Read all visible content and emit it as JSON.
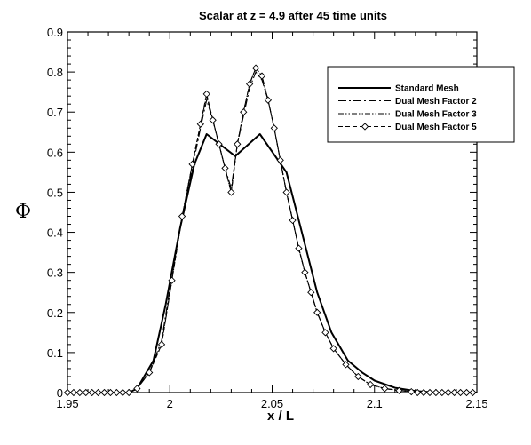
{
  "chart_data": {
    "type": "line",
    "title": "Scalar at z = 4.9 after 45 time units",
    "xlabel": "x / L",
    "ylabel": "Φ",
    "xlim": [
      1.95,
      2.15
    ],
    "ylim": [
      0,
      0.9
    ],
    "x_ticks": [
      "1.95",
      "2",
      "2.05",
      "2.1",
      "2.15"
    ],
    "y_ticks": [
      "0",
      "0.1",
      "0.2",
      "0.3",
      "0.4",
      "0.5",
      "0.6",
      "0.7",
      "0.8",
      "0.9"
    ],
    "grid": false,
    "legend_position": "top-right",
    "series": [
      {
        "name": "Standard Mesh",
        "style": "solid",
        "marker": "none",
        "x": [
          1.95,
          1.98,
          1.984,
          1.992,
          1.998,
          2.005,
          2.012,
          2.018,
          2.032,
          2.044,
          2.057,
          2.061,
          2.066,
          2.072,
          2.079,
          2.087,
          2.094,
          2.1,
          2.11,
          2.12,
          2.13,
          2.15
        ],
        "y": [
          0.0,
          0.0,
          0.01,
          0.08,
          0.22,
          0.41,
          0.57,
          0.645,
          0.59,
          0.645,
          0.55,
          0.47,
          0.37,
          0.25,
          0.15,
          0.08,
          0.05,
          0.03,
          0.012,
          0.004,
          0.0,
          0.0
        ]
      },
      {
        "name": "Dual Mesh Factor 2",
        "style": "dashdot",
        "marker": "none",
        "x": [
          1.95,
          1.98,
          1.984,
          1.99,
          1.996,
          2.001,
          2.006,
          2.011,
          2.015,
          2.018,
          2.021,
          2.024,
          2.027,
          2.03,
          2.033,
          2.036,
          2.039,
          2.042,
          2.045,
          2.048,
          2.051,
          2.054,
          2.057,
          2.06,
          2.063,
          2.066,
          2.069,
          2.072,
          2.076,
          2.08,
          2.086,
          2.092,
          2.098,
          2.105,
          2.115,
          2.125,
          2.15
        ],
        "y": [
          0.0,
          0.0,
          0.01,
          0.05,
          0.13,
          0.29,
          0.44,
          0.56,
          0.66,
          0.73,
          0.68,
          0.62,
          0.56,
          0.51,
          0.62,
          0.69,
          0.76,
          0.8,
          0.78,
          0.73,
          0.66,
          0.58,
          0.5,
          0.43,
          0.36,
          0.3,
          0.25,
          0.2,
          0.15,
          0.11,
          0.07,
          0.04,
          0.02,
          0.01,
          0.004,
          0.0,
          0.0
        ]
      },
      {
        "name": "Dual Mesh Factor 3",
        "style": "dashdotdot",
        "marker": "none",
        "x": [
          1.95,
          1.98,
          1.984,
          1.99,
          1.996,
          2.001,
          2.006,
          2.011,
          2.015,
          2.018,
          2.021,
          2.024,
          2.027,
          2.03,
          2.033,
          2.036,
          2.039,
          2.042,
          2.045,
          2.048,
          2.051,
          2.054,
          2.057,
          2.06,
          2.063,
          2.066,
          2.069,
          2.072,
          2.076,
          2.08,
          2.086,
          2.092,
          2.098,
          2.105,
          2.115,
          2.125,
          2.15
        ],
        "y": [
          0.0,
          0.0,
          0.01,
          0.05,
          0.12,
          0.28,
          0.44,
          0.57,
          0.67,
          0.74,
          0.68,
          0.62,
          0.56,
          0.5,
          0.62,
          0.7,
          0.77,
          0.81,
          0.79,
          0.73,
          0.66,
          0.58,
          0.5,
          0.43,
          0.36,
          0.3,
          0.25,
          0.2,
          0.15,
          0.11,
          0.07,
          0.04,
          0.02,
          0.01,
          0.004,
          0.0,
          0.0
        ]
      },
      {
        "name": "Dual Mesh Factor 5",
        "style": "dashed",
        "marker": "diamond",
        "x": [
          1.95,
          1.953,
          1.956,
          1.959,
          1.962,
          1.965,
          1.968,
          1.971,
          1.974,
          1.977,
          1.98,
          1.984,
          1.99,
          1.996,
          2.001,
          2.006,
          2.011,
          2.015,
          2.018,
          2.021,
          2.024,
          2.027,
          2.03,
          2.033,
          2.036,
          2.039,
          2.042,
          2.045,
          2.048,
          2.051,
          2.054,
          2.057,
          2.06,
          2.063,
          2.066,
          2.069,
          2.072,
          2.076,
          2.08,
          2.086,
          2.092,
          2.098,
          2.105,
          2.112,
          2.118,
          2.121,
          2.124,
          2.127,
          2.13,
          2.133,
          2.136,
          2.139,
          2.142,
          2.145,
          2.148
        ],
        "y": [
          0.0,
          0.0,
          0.0,
          0.0,
          0.0,
          0.0,
          0.0,
          0.0,
          0.0,
          0.0,
          0.0,
          0.01,
          0.05,
          0.12,
          0.28,
          0.44,
          0.57,
          0.67,
          0.745,
          0.68,
          0.62,
          0.56,
          0.5,
          0.62,
          0.7,
          0.77,
          0.81,
          0.79,
          0.73,
          0.66,
          0.58,
          0.5,
          0.43,
          0.36,
          0.3,
          0.25,
          0.2,
          0.15,
          0.11,
          0.07,
          0.04,
          0.02,
          0.01,
          0.005,
          0.002,
          0.0,
          0.0,
          0.0,
          0.0,
          0.0,
          0.0,
          0.0,
          0.0,
          0.0,
          0.0
        ]
      }
    ]
  },
  "colors": {
    "line": "#000000",
    "background": "#ffffff"
  }
}
